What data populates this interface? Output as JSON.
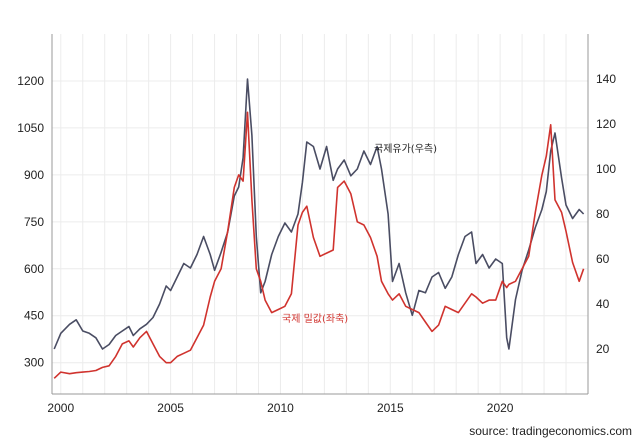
{
  "chart_data": {
    "type": "line",
    "title": "",
    "xlabel": "",
    "x_ticks": [
      "2000",
      "2005",
      "2010",
      "2015",
      "2020"
    ],
    "left_axis": {
      "label": "국제 밀값(좌축)",
      "ylim": [
        200,
        1350
      ],
      "ticks": [
        "300",
        "450",
        "600",
        "750",
        "900",
        "1050",
        "1200"
      ]
    },
    "right_axis": {
      "label": "국제유가(우측)",
      "ylim": [
        0,
        160
      ],
      "ticks": [
        "20",
        "40",
        "60",
        "80",
        "100",
        "120",
        "140"
      ]
    },
    "xlim": [
      1999.6,
      2024.0
    ],
    "series": [
      {
        "name": "국제유가(우측)",
        "axis": "right",
        "color": "#4a4d63",
        "x": [
          1999.7,
          2000.0,
          2000.4,
          2000.7,
          2001.0,
          2001.3,
          2001.6,
          2001.9,
          2002.2,
          2002.5,
          2002.8,
          2003.1,
          2003.3,
          2003.6,
          2003.9,
          2004.2,
          2004.5,
          2004.8,
          2005.0,
          2005.3,
          2005.6,
          2005.9,
          2006.2,
          2006.5,
          2006.8,
          2007.0,
          2007.3,
          2007.6,
          2007.9,
          2008.1,
          2008.3,
          2008.5,
          2008.7,
          2008.9,
          2009.1,
          2009.3,
          2009.6,
          2009.9,
          2010.2,
          2010.5,
          2010.8,
          2011.0,
          2011.2,
          2011.5,
          2011.8,
          2012.1,
          2012.4,
          2012.6,
          2012.9,
          2013.2,
          2013.5,
          2013.8,
          2014.1,
          2014.4,
          2014.6,
          2014.9,
          2015.1,
          2015.4,
          2015.7,
          2016.0,
          2016.3,
          2016.6,
          2016.9,
          2017.2,
          2017.5,
          2017.8,
          2018.1,
          2018.4,
          2018.7,
          2018.9,
          2019.2,
          2019.5,
          2019.8,
          2020.1,
          2020.3,
          2020.4,
          2020.7,
          2021.0,
          2021.3,
          2021.6,
          2021.9,
          2022.1,
          2022.3,
          2022.5,
          2022.8,
          2023.0,
          2023.3,
          2023.6,
          2023.8
        ],
        "values": [
          20,
          27,
          31,
          33,
          28,
          27,
          25,
          20,
          22,
          26,
          28,
          30,
          26,
          29,
          31,
          34,
          40,
          48,
          46,
          52,
          58,
          56,
          62,
          70,
          62,
          55,
          63,
          72,
          88,
          92,
          105,
          140,
          115,
          70,
          45,
          50,
          62,
          70,
          76,
          72,
          80,
          94,
          112,
          110,
          100,
          110,
          95,
          100,
          104,
          97,
          100,
          108,
          102,
          110,
          100,
          80,
          50,
          58,
          45,
          35,
          46,
          45,
          52,
          54,
          47,
          52,
          62,
          70,
          72,
          58,
          62,
          56,
          60,
          58,
          25,
          20,
          42,
          55,
          64,
          74,
          82,
          90,
          108,
          116,
          96,
          84,
          78,
          82,
          80
        ]
      },
      {
        "name": "국제 밀값(좌축)",
        "axis": "left",
        "color": "#d0332e",
        "x": [
          1999.7,
          2000.0,
          2000.4,
          2000.7,
          2001.0,
          2001.3,
          2001.6,
          2001.9,
          2002.2,
          2002.5,
          2002.8,
          2003.1,
          2003.3,
          2003.6,
          2003.9,
          2004.2,
          2004.5,
          2004.8,
          2005.0,
          2005.3,
          2005.6,
          2005.9,
          2006.2,
          2006.5,
          2006.8,
          2007.0,
          2007.3,
          2007.6,
          2007.9,
          2008.1,
          2008.3,
          2008.5,
          2008.7,
          2008.9,
          2009.1,
          2009.3,
          2009.6,
          2009.9,
          2010.2,
          2010.5,
          2010.8,
          2011.0,
          2011.2,
          2011.5,
          2011.8,
          2012.1,
          2012.4,
          2012.6,
          2012.9,
          2013.2,
          2013.5,
          2013.8,
          2014.1,
          2014.4,
          2014.6,
          2014.9,
          2015.1,
          2015.4,
          2015.7,
          2016.0,
          2016.3,
          2016.6,
          2016.9,
          2017.2,
          2017.5,
          2017.8,
          2018.1,
          2018.4,
          2018.7,
          2018.9,
          2019.2,
          2019.5,
          2019.8,
          2020.1,
          2020.3,
          2020.4,
          2020.7,
          2021.0,
          2021.3,
          2021.6,
          2021.9,
          2022.1,
          2022.3,
          2022.5,
          2022.8,
          2023.0,
          2023.3,
          2023.6,
          2023.8
        ],
        "values": [
          250,
          270,
          265,
          268,
          270,
          272,
          275,
          285,
          290,
          320,
          360,
          370,
          350,
          380,
          400,
          360,
          320,
          300,
          300,
          320,
          330,
          340,
          380,
          420,
          510,
          560,
          600,
          720,
          860,
          900,
          880,
          1100,
          820,
          600,
          560,
          500,
          460,
          470,
          480,
          520,
          740,
          780,
          800,
          700,
          640,
          650,
          660,
          860,
          880,
          840,
          750,
          740,
          700,
          640,
          560,
          520,
          500,
          520,
          480,
          470,
          460,
          430,
          400,
          420,
          480,
          470,
          460,
          490,
          520,
          510,
          490,
          500,
          500,
          560,
          540,
          550,
          560,
          600,
          640,
          780,
          900,
          960,
          1060,
          820,
          780,
          720,
          620,
          560,
          600
        ]
      }
    ],
    "annotations": [
      "국제유가(우측)",
      "국제 밀값(좌축)"
    ]
  },
  "source": "source: tradingeconomics.com"
}
